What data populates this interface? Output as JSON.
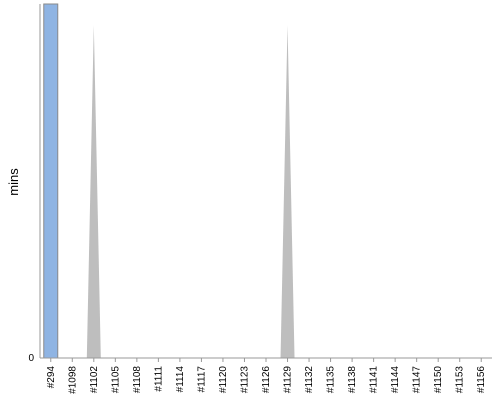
{
  "chart_data": {
    "type": "bar",
    "title": "",
    "xlabel": "",
    "ylabel": "mins",
    "ylim": [
      0,
      1
    ],
    "yticks": [
      "0"
    ],
    "grid": false,
    "legend": "none",
    "categories": [
      "#294",
      "#1098",
      "#1102",
      "#1105",
      "#1108",
      "#1111",
      "#1114",
      "#1117",
      "#1120",
      "#1123",
      "#1126",
      "#1129",
      "#1132",
      "#1135",
      "#1138",
      "#1141",
      "#1144",
      "#1147",
      "#1150",
      "#1153",
      "#1156"
    ],
    "series": [
      {
        "color": "#8fb4e3",
        "values": [
          1.0,
          0,
          0,
          0,
          0,
          0,
          0,
          0,
          0,
          0,
          0,
          0,
          0,
          0,
          0,
          0,
          0,
          0,
          0,
          0,
          0
        ]
      },
      {
        "color": "#bebebe",
        "peaks": [
          {
            "x": "#1102",
            "value": 0.94
          },
          {
            "x": "#1129",
            "value": 0.94
          }
        ]
      }
    ]
  }
}
